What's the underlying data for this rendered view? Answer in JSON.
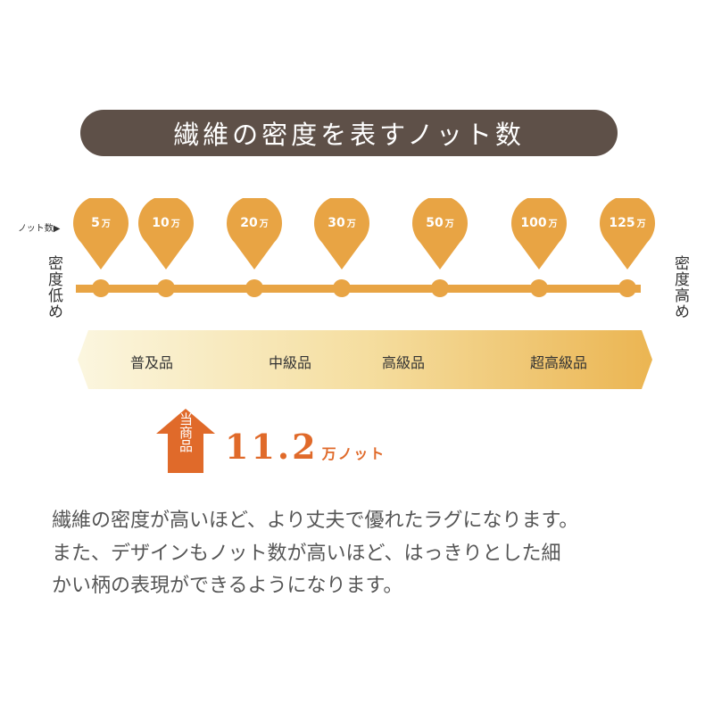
{
  "title": "繊維の密度を表すノット数",
  "knot_label": "ノット数▶",
  "unit": "万",
  "pins": [
    "5",
    "10",
    "20",
    "30",
    "50",
    "100",
    "125"
  ],
  "side_low": "密度低め",
  "side_high": "密度高め",
  "grades": [
    "普及品",
    "中級品",
    "高級品",
    "超高級品"
  ],
  "current": {
    "label": "当商品",
    "value": "11.2",
    "unit": "万ノット"
  },
  "description": [
    "繊維の密度が高いほど、より丈夫で優れたラグになります。",
    "また、デザインもノット数が高いほど、はっきりとした細",
    "かい柄の表現ができるようになります。"
  ],
  "colors": {
    "pin": "#e8a444",
    "title_bg": "#5e5048",
    "accent": "#e06a2a"
  }
}
